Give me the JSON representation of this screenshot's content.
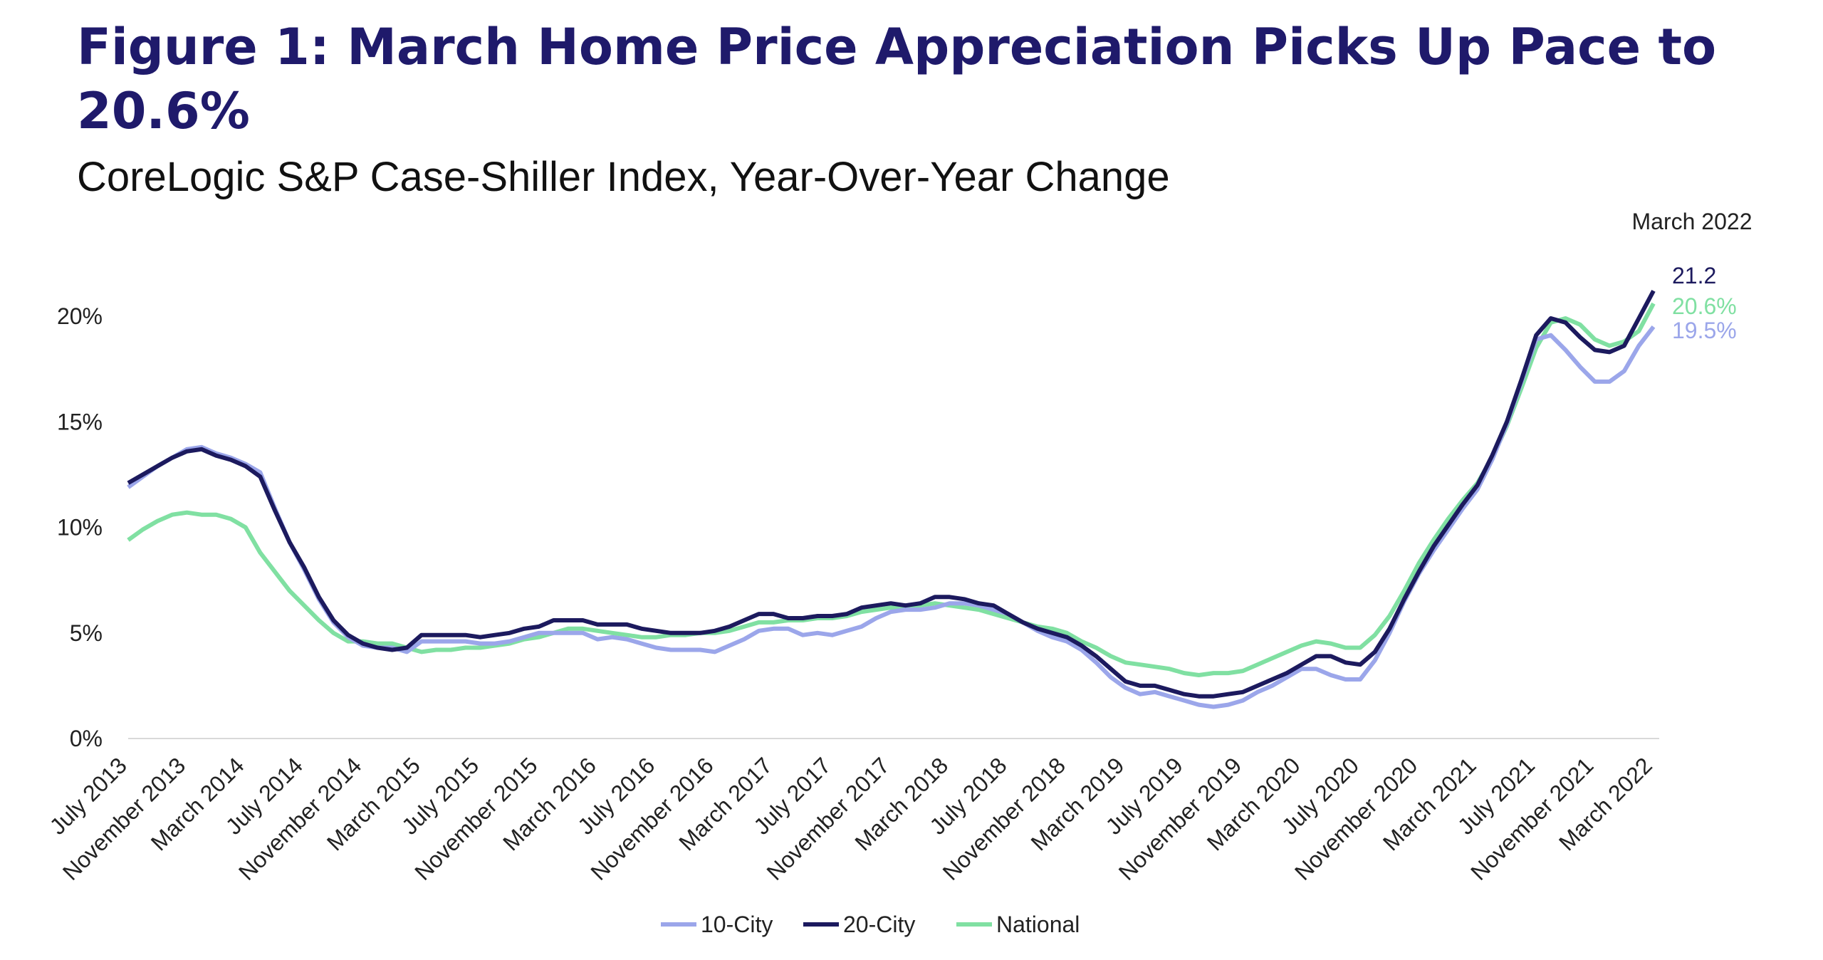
{
  "chart_data": {
    "type": "line",
    "title": "Figure 1: March Home Price Appreciation Picks Up Pace to 20.6%",
    "subtitle": "CoreLogic S&P Case-Shiller Index, Year-Over-Year Change",
    "annotations": [
      "March 2022"
    ],
    "categories": [
      "July 2013",
      null,
      null,
      null,
      "November 2013",
      null,
      null,
      null,
      "March 2014",
      null,
      null,
      null,
      "July 2014",
      null,
      null,
      null,
      "November 2014",
      null,
      null,
      null,
      "March 2015",
      null,
      null,
      null,
      "July 2015",
      null,
      null,
      null,
      "November 2015",
      null,
      null,
      null,
      "March 2016",
      null,
      null,
      null,
      "July 2016",
      null,
      null,
      null,
      "November 2016",
      null,
      null,
      null,
      "March 2017",
      null,
      null,
      null,
      "July 2017",
      null,
      null,
      null,
      "November 2017",
      null,
      null,
      null,
      "March 2018",
      null,
      null,
      null,
      "July 2018",
      null,
      null,
      null,
      "November 2018",
      null,
      null,
      null,
      "March 2019",
      null,
      null,
      null,
      "July 2019",
      null,
      null,
      null,
      "November 2019",
      null,
      null,
      null,
      "March 2020",
      null,
      null,
      null,
      "July 2020",
      null,
      null,
      null,
      "November 2020",
      null,
      null,
      null,
      "March 2021",
      null,
      null,
      null,
      "July 2021",
      null,
      null,
      null,
      "November 2021",
      null,
      null,
      null,
      "March 2022"
    ],
    "series": [
      {
        "name": "10-City",
        "color": "#9ba6ea",
        "values": [
          11.9,
          12.4,
          12.9,
          13.3,
          13.7,
          13.8,
          13.5,
          13.3,
          13.0,
          12.6,
          10.9,
          9.3,
          8.0,
          6.6,
          5.5,
          4.8,
          4.4,
          4.3,
          4.3,
          4.1,
          4.6,
          4.6,
          4.6,
          4.6,
          4.5,
          4.5,
          4.6,
          4.8,
          5.0,
          5.0,
          5.0,
          5.0,
          4.7,
          4.8,
          4.7,
          4.5,
          4.3,
          4.2,
          4.2,
          4.2,
          4.1,
          4.4,
          4.7,
          5.1,
          5.2,
          5.2,
          4.9,
          5.0,
          4.9,
          5.1,
          5.3,
          5.7,
          6.0,
          6.1,
          6.1,
          6.2,
          6.4,
          6.4,
          6.3,
          6.1,
          5.9,
          5.5,
          5.1,
          4.8,
          4.6,
          4.2,
          3.6,
          2.9,
          2.4,
          2.1,
          2.2,
          2.0,
          1.8,
          1.6,
          1.5,
          1.6,
          1.8,
          2.2,
          2.5,
          2.9,
          3.3,
          3.3,
          3.0,
          2.8,
          2.8,
          3.7,
          5.0,
          6.5,
          7.8,
          8.9,
          9.9,
          10.9,
          11.8,
          13.2,
          14.9,
          16.9,
          18.9,
          19.1,
          18.4,
          17.6,
          16.9,
          16.9,
          17.4,
          18.6,
          19.5
        ],
        "value_labels": [
          null,
          null,
          null,
          null,
          null,
          null,
          null,
          null,
          null,
          null,
          null,
          null,
          null,
          null,
          null,
          null,
          null,
          null,
          null,
          null,
          null,
          null,
          null,
          null,
          null,
          null,
          null,
          null,
          null,
          null,
          null,
          null,
          null,
          null,
          null,
          null,
          null,
          null,
          null,
          null,
          null,
          null,
          null,
          null,
          null,
          null,
          null,
          null,
          null,
          null,
          null,
          null,
          null,
          null,
          null,
          null,
          null,
          null,
          null,
          null,
          null,
          null,
          null,
          null,
          null,
          null,
          null,
          null,
          null,
          null,
          null,
          null,
          null,
          null,
          null,
          null,
          null,
          null,
          null,
          null,
          null,
          null,
          null,
          null,
          null,
          null,
          null,
          null,
          null,
          null,
          null,
          null,
          null,
          null,
          null,
          null,
          null,
          null,
          null,
          null,
          null,
          null,
          null,
          null,
          "19.5%"
        ]
      },
      {
        "name": "20-City",
        "color": "#1c1a5e",
        "values": [
          12.1,
          12.5,
          12.9,
          13.3,
          13.6,
          13.7,
          13.4,
          13.2,
          12.9,
          12.4,
          10.8,
          9.3,
          8.1,
          6.7,
          5.6,
          4.9,
          4.5,
          4.3,
          4.2,
          4.3,
          4.9,
          4.9,
          4.9,
          4.9,
          4.8,
          4.9,
          5.0,
          5.2,
          5.3,
          5.6,
          5.6,
          5.6,
          5.4,
          5.4,
          5.4,
          5.2,
          5.1,
          5.0,
          5.0,
          5.0,
          5.1,
          5.3,
          5.6,
          5.9,
          5.9,
          5.7,
          5.7,
          5.8,
          5.8,
          5.9,
          6.2,
          6.3,
          6.4,
          6.3,
          6.4,
          6.7,
          6.7,
          6.6,
          6.4,
          6.3,
          5.9,
          5.5,
          5.2,
          5.0,
          4.8,
          4.4,
          3.9,
          3.3,
          2.7,
          2.5,
          2.5,
          2.3,
          2.1,
          2.0,
          2.0,
          2.1,
          2.2,
          2.5,
          2.8,
          3.1,
          3.5,
          3.9,
          3.9,
          3.6,
          3.5,
          4.1,
          5.2,
          6.6,
          7.9,
          9.1,
          10.1,
          11.1,
          12.0,
          13.4,
          15.0,
          17.0,
          19.1,
          19.9,
          19.7,
          19.0,
          18.4,
          18.3,
          18.6,
          19.9,
          21.2
        ]
      },
      {
        "name": "National",
        "color": "#80e0a2",
        "values": [
          9.4,
          9.9,
          10.3,
          10.6,
          10.7,
          10.6,
          10.6,
          10.4,
          10.0,
          8.8,
          7.9,
          7.0,
          6.3,
          5.6,
          5.0,
          4.6,
          4.6,
          4.5,
          4.5,
          4.3,
          4.1,
          4.2,
          4.2,
          4.3,
          4.3,
          4.4,
          4.5,
          4.7,
          4.8,
          5.0,
          5.2,
          5.2,
          5.1,
          5.0,
          4.9,
          4.8,
          4.8,
          4.9,
          4.9,
          5.0,
          5.0,
          5.1,
          5.3,
          5.5,
          5.5,
          5.6,
          5.6,
          5.7,
          5.7,
          5.8,
          6.0,
          6.1,
          6.2,
          6.2,
          6.3,
          6.4,
          6.3,
          6.2,
          6.1,
          5.9,
          5.7,
          5.5,
          5.3,
          5.2,
          5.0,
          4.6,
          4.3,
          3.9,
          3.6,
          3.5,
          3.4,
          3.3,
          3.1,
          3.0,
          3.1,
          3.1,
          3.2,
          3.5,
          3.8,
          4.1,
          4.4,
          4.6,
          4.5,
          4.3,
          4.3,
          4.9,
          5.8,
          7.0,
          8.3,
          9.4,
          10.4,
          11.3,
          12.1,
          13.3,
          14.8,
          16.6,
          18.5,
          19.7,
          19.9,
          19.6,
          18.9,
          18.6,
          18.8,
          19.3,
          20.6
        ],
        "value_labels": [
          null,
          null,
          null,
          null,
          null,
          null,
          null,
          null,
          null,
          null,
          null,
          null,
          null,
          null,
          null,
          null,
          null,
          null,
          null,
          null,
          null,
          null,
          null,
          null,
          null,
          null,
          null,
          null,
          null,
          null,
          null,
          null,
          null,
          null,
          null,
          null,
          null,
          null,
          null,
          null,
          null,
          null,
          null,
          null,
          null,
          null,
          null,
          null,
          null,
          null,
          null,
          null,
          null,
          null,
          null,
          null,
          null,
          null,
          null,
          null,
          null,
          null,
          null,
          null,
          null,
          null,
          null,
          null,
          null,
          null,
          null,
          null,
          null,
          null,
          null,
          null,
          null,
          null,
          null,
          null,
          null,
          null,
          null,
          null,
          null,
          null,
          null,
          null,
          null,
          null,
          null,
          null,
          null,
          null,
          null,
          null,
          null,
          null,
          null,
          null,
          null,
          null,
          null,
          null,
          "20.6%"
        ]
      }
    ],
    "ylim": [
      0,
      22
    ],
    "yticks": [
      {
        "value": 0,
        "label": "0%"
      },
      {
        "value": 5,
        "label": "5%"
      },
      {
        "value": 10,
        "label": "10%"
      },
      {
        "value": 15,
        "label": "15%"
      },
      {
        "value": 20,
        "label": "20%"
      }
    ],
    "grid": false,
    "legend": "bottom"
  }
}
